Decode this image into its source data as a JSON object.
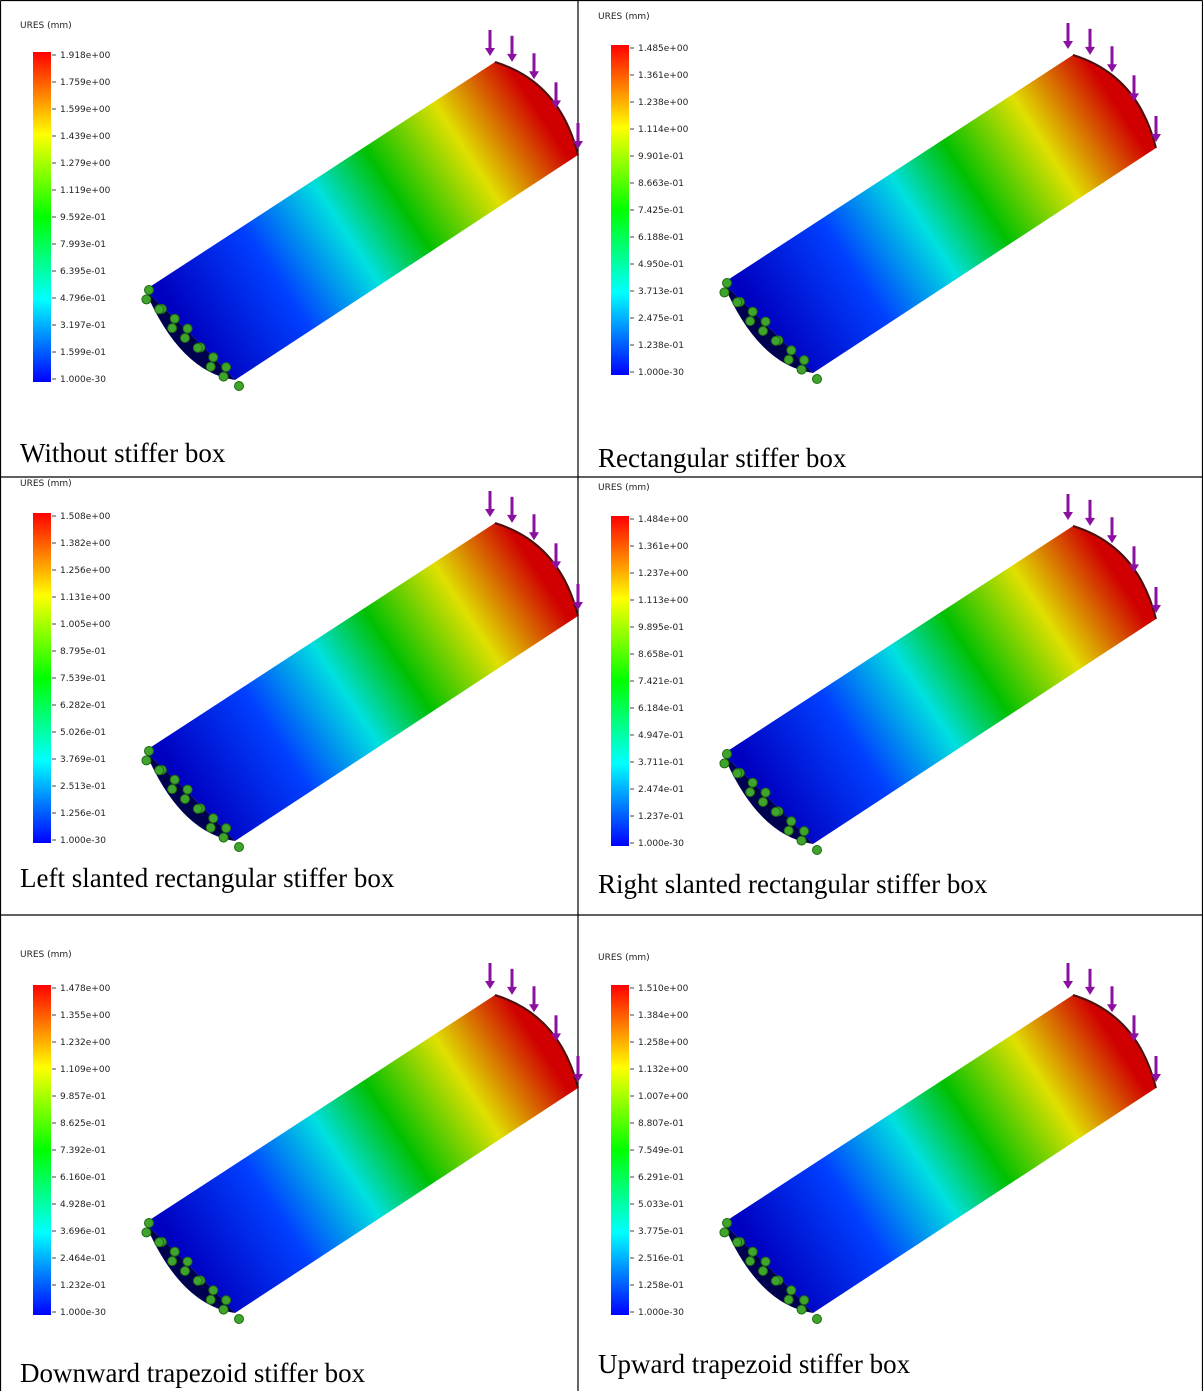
{
  "panels": [
    {
      "legend_title": "URES (mm)",
      "legend_labels": [
        "1.918e+00",
        "1.759e+00",
        "1.599e+00",
        "1.439e+00",
        "1.279e+00",
        "1.119e+00",
        "9.592e-01",
        "7.993e-01",
        "6.395e-01",
        "4.796e-01",
        "3.197e-01",
        "1.599e-01",
        "1.000e-30"
      ],
      "caption": "Without stiffer box"
    },
    {
      "legend_title": "URES (mm)",
      "legend_labels": [
        "1.485e+00",
        "1.361e+00",
        "1.238e+00",
        "1.114e+00",
        "9.901e-01",
        "8.663e-01",
        "7.425e-01",
        "6.188e-01",
        "4.950e-01",
        "3.713e-01",
        "2.475e-01",
        "1.238e-01",
        "1.000e-30"
      ],
      "caption": "Rectangular stiffer box"
    },
    {
      "legend_title": "URES (mm)",
      "legend_labels": [
        "1.508e+00",
        "1.382e+00",
        "1.256e+00",
        "1.131e+00",
        "1.005e+00",
        "8.795e-01",
        "7.539e-01",
        "6.282e-01",
        "5.026e-01",
        "3.769e-01",
        "2.513e-01",
        "1.256e-01",
        "1.000e-30"
      ],
      "caption": "Left slanted rectangular stiffer box"
    },
    {
      "legend_title": "URES (mm)",
      "legend_labels": [
        "1.484e+00",
        "1.361e+00",
        "1.237e+00",
        "1.113e+00",
        "9.895e-01",
        "8.658e-01",
        "7.421e-01",
        "6.184e-01",
        "4.947e-01",
        "3.711e-01",
        "2.474e-01",
        "1.237e-01",
        "1.000e-30"
      ],
      "caption": "Right slanted rectangular stiffer box"
    },
    {
      "legend_title": "URES (mm)",
      "legend_labels": [
        "1.478e+00",
        "1.355e+00",
        "1.232e+00",
        "1.109e+00",
        "9.857e-01",
        "8.625e-01",
        "7.392e-01",
        "6.160e-01",
        "4.928e-01",
        "3.696e-01",
        "2.464e-01",
        "1.232e-01",
        "1.000e-30"
      ],
      "caption": "Downward trapezoid stiffer box"
    },
    {
      "legend_title": "URES (mm)",
      "legend_labels": [
        "1.510e+00",
        "1.384e+00",
        "1.258e+00",
        "1.132e+00",
        "1.007e+00",
        "8.807e-01",
        "7.549e-01",
        "6.291e-01",
        "5.033e-01",
        "3.775e-01",
        "2.516e-01",
        "1.258e-01",
        "1.000e-30"
      ],
      "caption": "Upward trapezoid stiffer box"
    }
  ]
}
